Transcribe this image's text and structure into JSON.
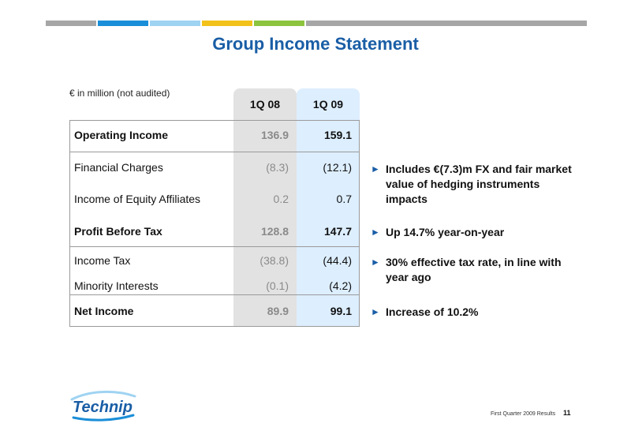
{
  "colors": {
    "accent_blue": "#1a5ea6",
    "bar_segments": [
      "#a6a6a6",
      "#1a8ed8",
      "#9fd3f2",
      "#f2c21b",
      "#8dc43f",
      "#a6a6a6"
    ],
    "col1_bg": "#e2e2e2",
    "col2_bg": "#ddeeff"
  },
  "title": "Group Income Statement",
  "units_note": "€ in million (not audited)",
  "columns": [
    "1Q 08",
    "1Q 09"
  ],
  "rows": [
    {
      "label": "Operating Income",
      "v1": "136.9",
      "v2": "159.1"
    },
    {
      "label": "Financial Charges",
      "v1": "(8.3)",
      "v2": "(12.1)"
    },
    {
      "label": "Income of Equity Affiliates",
      "v1": "0.2",
      "v2": "0.7"
    },
    {
      "label": "Profit Before Tax",
      "v1": "128.8",
      "v2": "147.7"
    },
    {
      "label": "Income Tax",
      "v1": "(38.8)",
      "v2": "(44.4)"
    },
    {
      "label": "Minority Interests",
      "v1": "(0.1)",
      "v2": "(4.2)"
    },
    {
      "label": "Net Income",
      "v1": "89.9",
      "v2": "99.1"
    }
  ],
  "bullets": [
    "Includes €(7.3)m FX and fair market value of hedging instruments impacts",
    "Up 14.7% year-on-year",
    "30% effective tax rate, in line with year ago",
    "Increase of 10.2%"
  ],
  "bullet_marker": "►",
  "logo_text": "Technip",
  "footer_text": "First Quarter 2009 Results",
  "page_number": "11"
}
